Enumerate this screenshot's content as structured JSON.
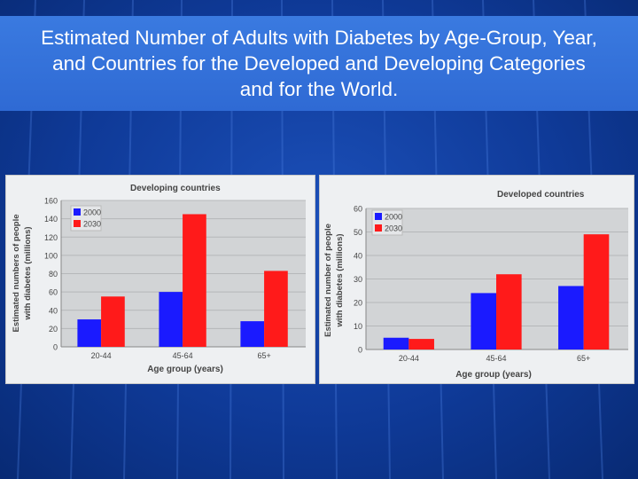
{
  "slide": {
    "title_lines": [
      "Estimated Number of Adults with Diabetes by Age-Group, Year,",
      "and Countries for the Developed and Developing Categories",
      "and for the World."
    ]
  },
  "colors": {
    "series_2000": "#1a1aff",
    "series_2030": "#ff1a1a"
  },
  "chart_data": [
    {
      "type": "bar",
      "title": "Developing countries",
      "xlabel": "Age group (years)",
      "ylabel_lines": [
        "Estimated numbers of people",
        "with diabetes (millions)"
      ],
      "categories": [
        "20-44",
        "45-64",
        "65+"
      ],
      "series": [
        {
          "name": "2000",
          "values": [
            30,
            60,
            28
          ]
        },
        {
          "name": "2030",
          "values": [
            55,
            145,
            83
          ]
        }
      ],
      "ylim": [
        0,
        160
      ],
      "yticks": [
        0,
        20,
        40,
        60,
        80,
        100,
        120,
        140,
        160
      ],
      "grid": true,
      "legend": "top-left"
    },
    {
      "type": "bar",
      "title": "Developed countries",
      "xlabel": "Age group (years)",
      "ylabel_lines": [
        "Estimated number of people",
        "with diabetes (millions)"
      ],
      "categories": [
        "20-44",
        "45-64",
        "65+"
      ],
      "series": [
        {
          "name": "2000",
          "values": [
            5,
            24,
            27
          ]
        },
        {
          "name": "2030",
          "values": [
            4.5,
            32,
            49
          ]
        }
      ],
      "ylim": [
        0,
        60
      ],
      "yticks": [
        0,
        10,
        20,
        30,
        40,
        50,
        60
      ],
      "grid": true,
      "legend": "top-left"
    }
  ]
}
